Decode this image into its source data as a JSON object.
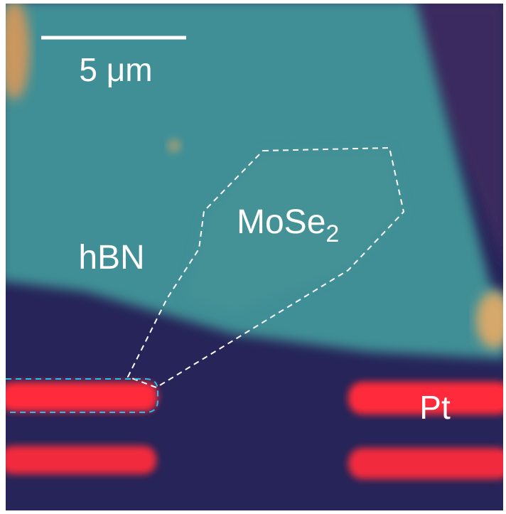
{
  "scale_bar": {
    "label": "5 μm"
  },
  "labels": {
    "hbn": "hBN",
    "mose2": "MoSe",
    "mose2_subscript": "2",
    "pt": "Pt"
  }
}
